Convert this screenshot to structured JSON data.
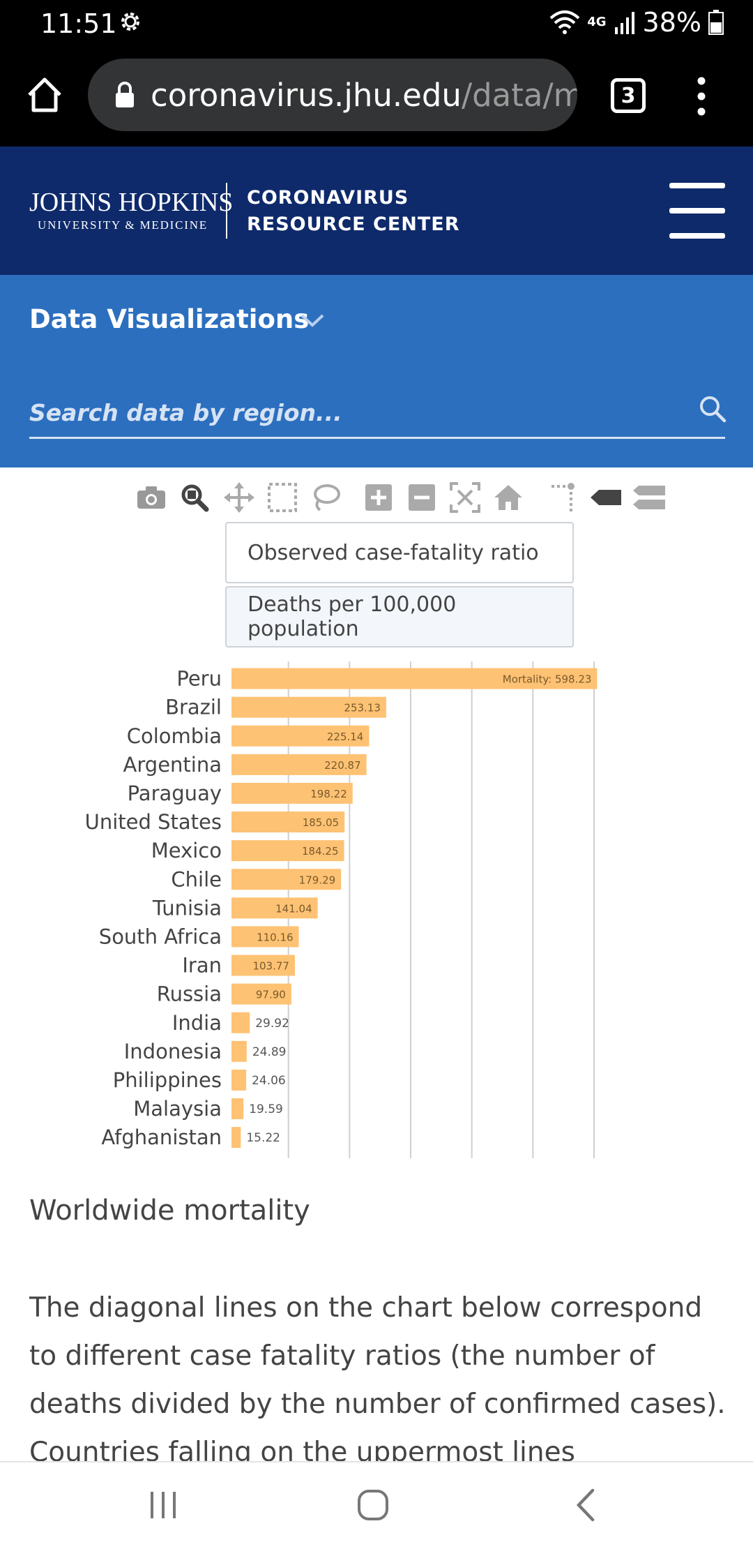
{
  "status_bar": {
    "time": "11:51",
    "network": "4G",
    "battery": "38%"
  },
  "browser": {
    "url_host": "coronavirus.jhu.edu",
    "url_path": "/data/mc",
    "tab_count": "3"
  },
  "header": {
    "brand_line1": "JOHNS HOPKINS",
    "brand_line2": "UNIVERSITY & MEDICINE",
    "center_line1": "CORONAVIRUS",
    "center_line2": "RESOURCE CENTER"
  },
  "nav": {
    "section_label": "Data Visualizations",
    "search_placeholder": "Search data by region..."
  },
  "toolbar": {
    "icons": [
      "camera-icon",
      "zoom-icon",
      "pan-icon",
      "box-select-icon",
      "lasso-select-icon",
      "zoom-in-icon",
      "zoom-out-icon",
      "autoscale-icon",
      "reset-axes-icon",
      "spike-lines-icon",
      "hover-closest-icon",
      "hover-compare-icon"
    ]
  },
  "metrics": {
    "option1": "Observed case-fatality ratio",
    "option2": "Deaths per 100,000 population",
    "selected": "Deaths per 100,000 population"
  },
  "chart_data": {
    "type": "bar",
    "orientation": "horizontal",
    "categories": [
      "Peru",
      "Brazil",
      "Colombia",
      "Argentina",
      "Paraguay",
      "United States",
      "Mexico",
      "Chile",
      "Tunisia",
      "South Africa",
      "Iran",
      "Russia",
      "India",
      "Indonesia",
      "Philippines",
      "Malaysia",
      "Afghanistan"
    ],
    "values": [
      598.23,
      253.13,
      225.14,
      220.87,
      198.22,
      185.05,
      184.25,
      179.29,
      141.04,
      110.16,
      103.77,
      97.9,
      29.92,
      24.89,
      24.06,
      19.59,
      15.22
    ],
    "labels": [
      "Mortality: 598.23",
      "253.13",
      "225.14",
      "220.87",
      "198.22",
      "185.05",
      "184.25",
      "179.29",
      "141.04",
      "110.16",
      "103.77",
      "97.90",
      "29.92",
      "24.89",
      "24.06",
      "19.59",
      "15.22"
    ],
    "bar_color": "#fec274",
    "grid": true,
    "xlim": [
      0,
      600
    ]
  },
  "article": {
    "title": "Worldwide mortality",
    "body": "The diagonal lines on the chart below correspond to different case fatality ratios (the number of deaths divided by the number of confirmed cases). Countries falling on the uppermost lines"
  }
}
